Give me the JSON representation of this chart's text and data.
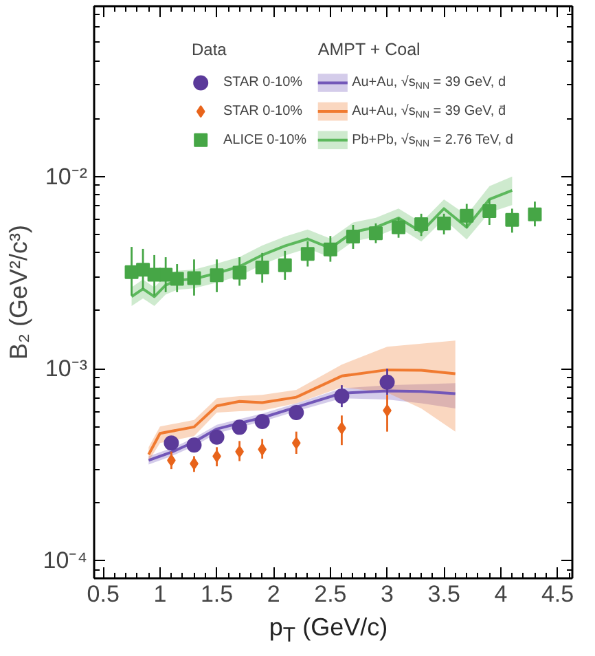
{
  "chart_data": {
    "type": "scatter",
    "xlabel": "p$_{T}$ (GeV/c)",
    "ylabel": "B₂ (GeV²/c³)",
    "legend_title": "Data",
    "annotations": [
      "AMPT + Coal"
    ],
    "log": "y",
    "xlim": [
      0.42,
      4.63
    ],
    "ylim": [
      8.1e-05,
      0.077
    ],
    "xticks": [
      0.5,
      1,
      1.5,
      2,
      2.5,
      3,
      3.5,
      4,
      4.5
    ],
    "yticks": [
      {
        "value": 0.0001,
        "label": "10⁻⁴"
      },
      {
        "value": 0.001,
        "label": "10⁻³"
      },
      {
        "value": 0.01,
        "label": "10⁻²"
      }
    ],
    "grid": false,
    "legend": "top",
    "series": [
      {
        "name": "STAR 0-10%",
        "color": "#5b3a9a",
        "marker": "circle",
        "x": [
          1.1,
          1.3,
          1.5,
          1.7,
          1.9,
          2.2,
          2.6,
          3.0
        ],
        "values": [
          0.00041,
          0.0004,
          0.00044,
          0.000495,
          0.00053,
          0.00059,
          0.00072,
          0.00085
        ],
        "errors": [
          [
            0.00038,
            0.00044
          ],
          [
            0.00037,
            0.00043
          ],
          [
            0.00041,
            0.00047
          ],
          [
            0.00046,
            0.00053
          ],
          [
            0.00049,
            0.00057
          ],
          [
            0.00054,
            0.00064
          ],
          [
            0.00063,
            0.00082
          ],
          [
            0.00073,
            0.001
          ]
        ]
      },
      {
        "name": "STAR 0-10%",
        "color": "#e8641b",
        "marker": "diamond",
        "x": [
          1.1,
          1.3,
          1.5,
          1.7,
          1.9,
          2.2,
          2.6,
          3.0
        ],
        "values": [
          0.000333,
          0.00032,
          0.00035,
          0.00037,
          0.00038,
          0.00041,
          0.00049,
          0.000605
        ],
        "errors": [
          [
            0.0003,
            0.00037
          ],
          [
            0.00029,
            0.00035
          ],
          [
            0.00031,
            0.00039
          ],
          [
            0.00033,
            0.00042
          ],
          [
            0.00034,
            0.00043
          ],
          [
            0.00036,
            0.00047
          ],
          [
            0.0004,
            0.00057
          ],
          [
            0.00047,
            0.00073
          ]
        ]
      },
      {
        "name": "ALICE 0-10%",
        "color": "#46a646",
        "marker": "square",
        "x": [
          0.75,
          0.85,
          0.95,
          1.05,
          1.15,
          1.3,
          1.5,
          1.7,
          1.9,
          2.1,
          2.3,
          2.5,
          2.7,
          2.9,
          3.1,
          3.3,
          3.5,
          3.7,
          3.9,
          4.1,
          4.3
        ],
        "values": [
          0.00318,
          0.00327,
          0.00308,
          0.00308,
          0.00293,
          0.00296,
          0.00306,
          0.00316,
          0.00336,
          0.00345,
          0.00395,
          0.00417,
          0.00487,
          0.00506,
          0.00544,
          0.00565,
          0.00569,
          0.00625,
          0.0066,
          0.00594,
          0.00635
        ],
        "errors": [
          [
            0.0024,
            0.0043
          ],
          [
            0.0026,
            0.0042
          ],
          [
            0.0024,
            0.0039
          ],
          [
            0.0025,
            0.0038
          ],
          [
            0.0025,
            0.0035
          ],
          [
            0.0024,
            0.0037
          ],
          [
            0.0025,
            0.0037
          ],
          [
            0.0027,
            0.0038
          ],
          [
            0.0028,
            0.004
          ],
          [
            0.0029,
            0.0041
          ],
          [
            0.0034,
            0.0046
          ],
          [
            0.0036,
            0.0049
          ],
          [
            0.0042,
            0.0056
          ],
          [
            0.0045,
            0.0057
          ],
          [
            0.0048,
            0.0061
          ],
          [
            0.0049,
            0.0064
          ],
          [
            0.005,
            0.0064
          ],
          [
            0.0054,
            0.0072
          ],
          [
            0.0056,
            0.0076
          ],
          [
            0.0051,
            0.0068
          ],
          [
            0.0055,
            0.0074
          ]
        ]
      },
      {
        "type": "line",
        "name": "Au+Au, √s$_{NN}$ = 39 GeV, d",
        "color": "#7257b8",
        "x": [
          0.9,
          1.1,
          1.3,
          1.5,
          1.7,
          1.9,
          2.2,
          2.6,
          3.0,
          3.3,
          3.6
        ],
        "values": [
          0.000333,
          0.000367,
          0.000415,
          0.000485,
          0.00052,
          0.000555,
          0.00063,
          0.000745,
          0.000765,
          0.00076,
          0.00074
        ],
        "lower": [
          0.000317,
          0.00035,
          0.000395,
          0.00046,
          0.000495,
          0.000529,
          0.0006,
          0.0007,
          0.00069,
          0.00066,
          0.00062
        ],
        "upper": [
          0.00035,
          0.000385,
          0.000436,
          0.00051,
          0.000546,
          0.000583,
          0.00066,
          0.00079,
          0.00082,
          0.00083,
          0.00084
        ]
      },
      {
        "type": "line",
        "name": "Au+Au, √s$_{NN}$ = 39 GeV, d̄",
        "color": "#f07a30",
        "x": [
          0.9,
          1.0,
          1.3,
          1.5,
          1.7,
          1.9,
          2.2,
          2.6,
          3.0,
          3.3,
          3.6
        ],
        "values": [
          0.000357,
          0.00046,
          0.000497,
          0.00064,
          0.000675,
          0.000665,
          0.00071,
          0.000915,
          0.000985,
          0.00098,
          0.00094
        ],
        "lower": [
          0.00033,
          0.00041,
          0.000445,
          0.00059,
          0.0006,
          0.000605,
          0.00066,
          0.0008,
          0.00075,
          0.00062,
          0.00047
        ],
        "upper": [
          0.00039,
          0.0005,
          0.00054,
          0.0007,
          0.00072,
          0.00073,
          0.000775,
          0.00105,
          0.0013,
          0.00135,
          0.0014
        ]
      },
      {
        "type": "line",
        "name": "Pb+Pb, √s$_{NN}$ = 2.76 TeV, d",
        "color": "#5cb85c",
        "x": [
          0.75,
          0.85,
          0.95,
          1.05,
          1.15,
          1.3,
          1.5,
          1.7,
          1.9,
          2.1,
          2.3,
          2.5,
          2.7,
          2.9,
          3.1,
          3.3,
          3.5,
          3.7,
          3.9,
          4.1
        ],
        "values": [
          0.00237,
          0.0026,
          0.00237,
          0.00272,
          0.00288,
          0.00293,
          0.00314,
          0.0034,
          0.0039,
          0.00435,
          0.00473,
          0.00424,
          0.00514,
          0.00544,
          0.00608,
          0.00514,
          0.0068,
          0.00544,
          0.0076,
          0.00847
        ],
        "lower": [
          0.00212,
          0.00232,
          0.00212,
          0.00243,
          0.00257,
          0.00262,
          0.0028,
          0.00304,
          0.00348,
          0.00388,
          0.00422,
          0.00379,
          0.00459,
          0.00486,
          0.00543,
          0.00459,
          0.006,
          0.0047,
          0.0065,
          0.0071
        ],
        "upper": [
          0.00265,
          0.00291,
          0.00265,
          0.00305,
          0.00323,
          0.00328,
          0.00352,
          0.00381,
          0.00437,
          0.00487,
          0.0053,
          0.00475,
          0.00576,
          0.00609,
          0.00681,
          0.00576,
          0.0076,
          0.0063,
          0.0089,
          0.01
        ]
      }
    ]
  }
}
